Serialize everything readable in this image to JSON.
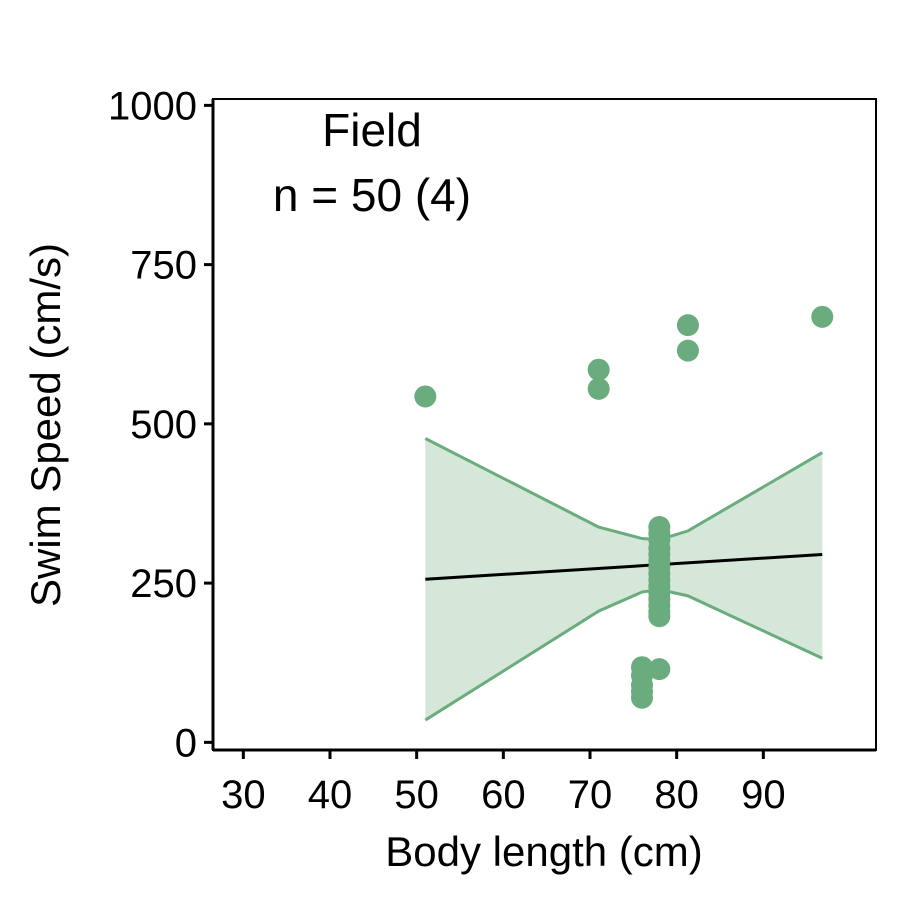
{
  "chart_data": {
    "type": "scatter",
    "xlabel": "Body length (cm)",
    "ylabel": "Swim Speed (cm/s)",
    "xlim": [
      26.5,
      103
    ],
    "ylim": [
      -12,
      1010
    ],
    "xticks": [
      30,
      40,
      50,
      60,
      70,
      80,
      90
    ],
    "yticks": [
      0,
      250,
      500,
      750,
      1000
    ],
    "annotations": [
      "Field",
      "n = 50 (4)"
    ],
    "grid": false,
    "points": [
      {
        "x": 51,
        "y": 543
      },
      {
        "x": 71,
        "y": 585
      },
      {
        "x": 71,
        "y": 555
      },
      {
        "x": 81.3,
        "y": 655
      },
      {
        "x": 81.3,
        "y": 615
      },
      {
        "x": 96.8,
        "y": 668
      },
      {
        "x": 78,
        "y": 338
      },
      {
        "x": 78,
        "y": 328
      },
      {
        "x": 78,
        "y": 318
      },
      {
        "x": 78,
        "y": 305
      },
      {
        "x": 78,
        "y": 295
      },
      {
        "x": 78,
        "y": 285
      },
      {
        "x": 78,
        "y": 275
      },
      {
        "x": 78,
        "y": 265
      },
      {
        "x": 78,
        "y": 255
      },
      {
        "x": 78,
        "y": 245
      },
      {
        "x": 78,
        "y": 235
      },
      {
        "x": 78,
        "y": 225
      },
      {
        "x": 78,
        "y": 215
      },
      {
        "x": 78,
        "y": 205
      },
      {
        "x": 78,
        "y": 198
      },
      {
        "x": 76,
        "y": 118
      },
      {
        "x": 76,
        "y": 105
      },
      {
        "x": 76,
        "y": 90
      },
      {
        "x": 76,
        "y": 80
      },
      {
        "x": 76,
        "y": 70
      },
      {
        "x": 78,
        "y": 115
      }
    ],
    "fit": {
      "x": [
        51,
        96.8
      ],
      "y": [
        256,
        295
      ]
    },
    "ci": {
      "x": [
        51,
        71,
        76,
        78,
        81.3,
        96.8
      ],
      "upper": [
        477,
        338,
        320,
        318,
        332,
        455
      ],
      "lower": [
        35,
        206,
        236,
        240,
        230,
        132
      ]
    },
    "colors": {
      "points": "#6aac7e",
      "band_fill": "#d5e7d9",
      "band_line": "#6aac7e",
      "fit_line": "#000000"
    }
  }
}
